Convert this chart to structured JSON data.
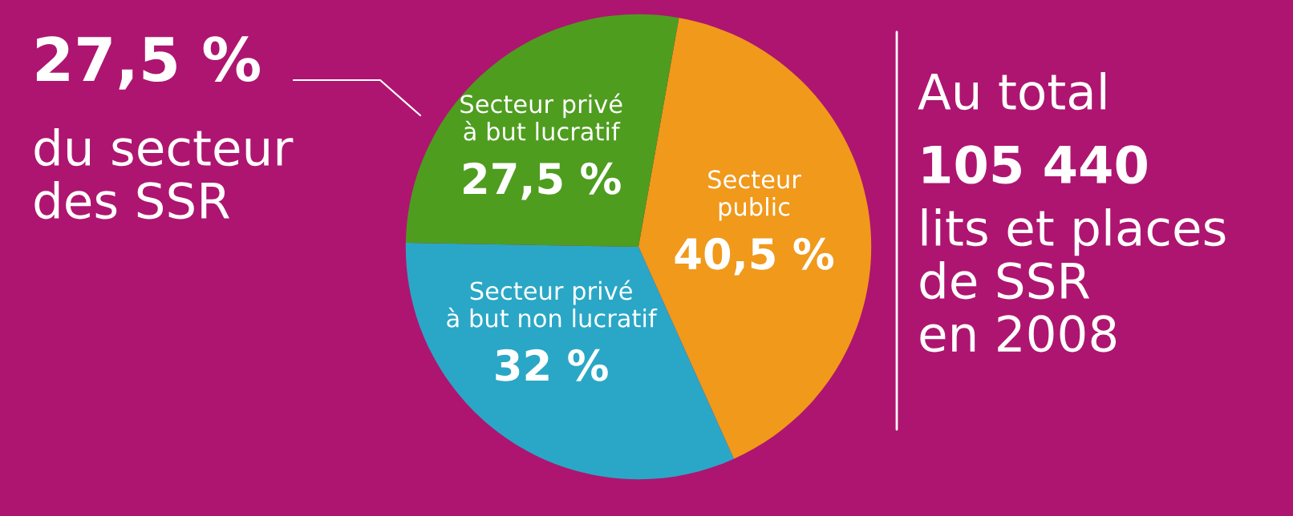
{
  "chart_data": {
    "type": "pie",
    "categories": [
      "Secteur\npublic",
      "Secteur privé\nà but non lucratif",
      "Secteur privé\nà but lucratif"
    ],
    "values": [
      40.5,
      32,
      27.5
    ],
    "value_labels": [
      "40,5 %",
      "32 %",
      "27,5 %"
    ],
    "colors": [
      "#f0991b",
      "#2aa7c6",
      "#4e9d1f"
    ],
    "annotations": [
      "27,5 %",
      "du secteur\ndes SSR",
      "Au total",
      "105 440",
      "lits et places\nde SSR\nen 2008"
    ],
    "legend": false
  }
}
